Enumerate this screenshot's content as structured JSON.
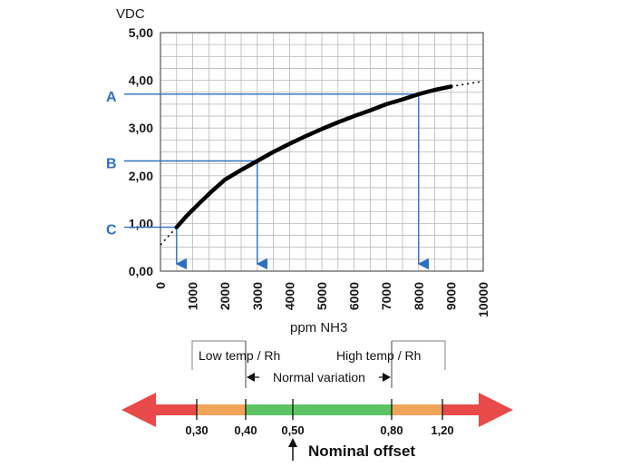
{
  "chart_data": {
    "type": "line",
    "ylabel": "VDC",
    "xlabel": "ppm NH3",
    "xlim": [
      0,
      10000
    ],
    "ylim": [
      0,
      5
    ],
    "xticks": [
      0,
      1000,
      2000,
      3000,
      4000,
      5000,
      6000,
      7000,
      8000,
      9000,
      10000
    ],
    "yticks": [
      0,
      1,
      2,
      3,
      4,
      5
    ],
    "x_tick_labels": [
      "0",
      "1000",
      "2000",
      "3000",
      "4000",
      "5000",
      "6000",
      "7000",
      "8000",
      "9000",
      "10000"
    ],
    "y_tick_labels": [
      "0,00",
      "1,00",
      "2,00",
      "3,00",
      "4,00",
      "5,00"
    ],
    "grid": true,
    "series": [
      {
        "x": [
          500,
          800,
          1200,
          1600,
          2000,
          2500,
          3000,
          3500,
          4000,
          4500,
          5000,
          5500,
          6000,
          6500,
          7000,
          7500,
          8000,
          8500,
          9000
        ],
        "y": [
          0.92,
          1.15,
          1.42,
          1.68,
          1.92,
          2.12,
          2.31,
          2.5,
          2.67,
          2.83,
          2.98,
          3.12,
          3.25,
          3.37,
          3.5,
          3.6,
          3.71,
          3.8,
          3.87
        ]
      }
    ],
    "extrapolation": {
      "low": {
        "x": [
          0,
          500
        ],
        "y": [
          0.55,
          0.92
        ]
      },
      "high": {
        "x": [
          9000,
          10000
        ],
        "y": [
          3.87,
          3.98
        ]
      }
    },
    "markers": [
      {
        "label": "A",
        "y": 3.71,
        "x": 8000
      },
      {
        "label": "B",
        "y": 2.31,
        "x": 3000
      },
      {
        "label": "C",
        "y": 0.92,
        "x": 500
      }
    ],
    "colors": {
      "curve": "#000000",
      "marker": "#2e6fbf",
      "grid": "#b8b8b8"
    }
  },
  "scale": {
    "low_label": "Low temp / Rh",
    "high_label": "High temp / Rh",
    "normal_label": "Normal variation",
    "ticks": [
      "0,30",
      "0,40",
      "0,50",
      "0,80",
      "1,20"
    ],
    "nominal_label": "Nominal offset",
    "colors": {
      "red": "#e84a4a",
      "orange": "#f0a45a",
      "green": "#5cc465"
    }
  }
}
